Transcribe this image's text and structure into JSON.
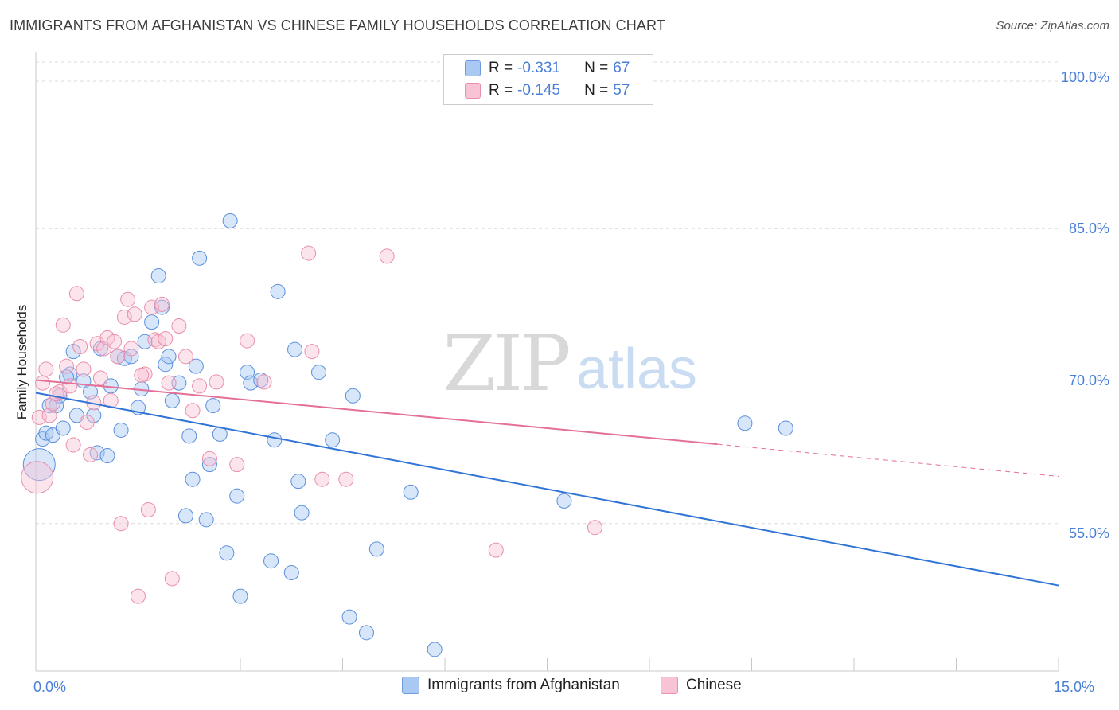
{
  "header": {
    "title": "IMMIGRANTS FROM AFGHANISTAN VS CHINESE FAMILY HOUSEHOLDS CORRELATION CHART",
    "source": "Source: ZipAtlas.com"
  },
  "watermark": {
    "zip": "ZIP",
    "atlas": "atlas"
  },
  "legend": {
    "rows": [
      {
        "r_label": "R =",
        "r_value": "-0.331",
        "n_label": "N =",
        "n_value": "67",
        "color": "#a9c8f2",
        "border": "#6d9be0"
      },
      {
        "r_label": "R =",
        "r_value": "-0.145",
        "n_label": "N =",
        "n_value": "57",
        "color": "#f8c3d4",
        "border": "#e88fab"
      }
    ]
  },
  "bottom_legend": {
    "items": [
      {
        "label": "Immigrants from Afghanistan",
        "color": "#a9c8f2",
        "border": "#6d9be0"
      },
      {
        "label": "Chinese",
        "color": "#f8c3d4",
        "border": "#e88fab"
      }
    ]
  },
  "chart_data": {
    "type": "scatter",
    "title": "IMMIGRANTS FROM AFGHANISTAN VS CHINESE FAMILY HOUSEHOLDS CORRELATION CHART",
    "xlabel": "",
    "ylabel": "Family Households",
    "xlim": [
      0,
      15
    ],
    "ylim": [
      40,
      103
    ],
    "x_tick_labels": [
      "0.0%",
      "15.0%"
    ],
    "y_tick_labels": [
      "100.0%",
      "85.0%",
      "70.0%",
      "55.0%"
    ],
    "y_tick_values": [
      100,
      85,
      70,
      55
    ],
    "grid": true,
    "legend_position": "top-center",
    "colors": {
      "blue": "#4a8ee0",
      "blue_fill": "#a9c8f2",
      "blue_line": "#2f74d6",
      "pink": "#e88fab",
      "pink_fill": "#f8c3d4",
      "pink_line": "#e56f97"
    },
    "series": [
      {
        "name": "Immigrants from Afghanistan",
        "color": "#a9c8f2",
        "points": [
          [
            0.05,
            61.0
          ],
          [
            0.1,
            63.6
          ],
          [
            0.15,
            64.2
          ],
          [
            0.2,
            67.0
          ],
          [
            0.25,
            64.0
          ],
          [
            0.3,
            67.0
          ],
          [
            0.35,
            68.0
          ],
          [
            0.4,
            64.7
          ],
          [
            0.5,
            70.2
          ],
          [
            0.55,
            72.5
          ],
          [
            0.6,
            66.0
          ],
          [
            0.7,
            69.5
          ],
          [
            0.8,
            68.4
          ],
          [
            0.85,
            66.0
          ],
          [
            0.9,
            62.2
          ],
          [
            0.95,
            72.8
          ],
          [
            1.05,
            61.9
          ],
          [
            1.1,
            69.0
          ],
          [
            1.2,
            72.0
          ],
          [
            1.25,
            64.5
          ],
          [
            1.3,
            71.8
          ],
          [
            1.4,
            72.0
          ],
          [
            1.5,
            66.8
          ],
          [
            1.55,
            68.7
          ],
          [
            1.6,
            73.5
          ],
          [
            1.7,
            75.5
          ],
          [
            1.8,
            80.2
          ],
          [
            1.85,
            77.0
          ],
          [
            1.9,
            71.2
          ],
          [
            1.95,
            72.0
          ],
          [
            2.0,
            67.5
          ],
          [
            2.1,
            69.3
          ],
          [
            2.2,
            55.8
          ],
          [
            2.25,
            63.9
          ],
          [
            2.3,
            59.5
          ],
          [
            2.35,
            71.0
          ],
          [
            2.4,
            82.0
          ],
          [
            2.5,
            55.4
          ],
          [
            2.55,
            61.0
          ],
          [
            2.6,
            67.0
          ],
          [
            2.7,
            64.1
          ],
          [
            2.8,
            52.0
          ],
          [
            2.85,
            85.8
          ],
          [
            2.95,
            57.8
          ],
          [
            3.0,
            47.6
          ],
          [
            3.1,
            70.4
          ],
          [
            3.15,
            69.3
          ],
          [
            3.3,
            69.6
          ],
          [
            3.45,
            51.2
          ],
          [
            3.5,
            63.5
          ],
          [
            3.55,
            78.6
          ],
          [
            3.75,
            50.0
          ],
          [
            3.8,
            72.7
          ],
          [
            3.85,
            59.3
          ],
          [
            3.9,
            56.1
          ],
          [
            4.15,
            70.4
          ],
          [
            4.35,
            63.5
          ],
          [
            4.6,
            45.5
          ],
          [
            4.65,
            68.0
          ],
          [
            4.85,
            43.9
          ],
          [
            5.0,
            52.4
          ],
          [
            5.5,
            58.2
          ],
          [
            5.85,
            42.2
          ],
          [
            7.75,
            57.3
          ],
          [
            10.4,
            65.2
          ],
          [
            11.0,
            64.7
          ],
          [
            0.45,
            69.9
          ]
        ]
      },
      {
        "name": "Chinese",
        "color": "#f8c3d4",
        "points": [
          [
            0.02,
            59.7
          ],
          [
            0.05,
            65.8
          ],
          [
            0.1,
            69.3
          ],
          [
            0.15,
            70.7
          ],
          [
            0.2,
            66.0
          ],
          [
            0.25,
            67.2
          ],
          [
            0.3,
            68.2
          ],
          [
            0.35,
            68.4
          ],
          [
            0.4,
            75.2
          ],
          [
            0.45,
            71.0
          ],
          [
            0.5,
            69.0
          ],
          [
            0.55,
            63.0
          ],
          [
            0.6,
            78.4
          ],
          [
            0.65,
            73.0
          ],
          [
            0.7,
            70.7
          ],
          [
            0.75,
            65.3
          ],
          [
            0.8,
            62.0
          ],
          [
            0.85,
            67.3
          ],
          [
            0.9,
            73.3
          ],
          [
            1.0,
            72.8
          ],
          [
            1.05,
            73.9
          ],
          [
            1.1,
            67.5
          ],
          [
            1.15,
            73.5
          ],
          [
            1.2,
            72.0
          ],
          [
            1.25,
            55.0
          ],
          [
            1.3,
            76.0
          ],
          [
            1.35,
            77.8
          ],
          [
            1.4,
            72.8
          ],
          [
            1.45,
            76.3
          ],
          [
            1.5,
            47.6
          ],
          [
            1.6,
            70.2
          ],
          [
            1.65,
            56.4
          ],
          [
            1.7,
            77.0
          ],
          [
            1.75,
            73.7
          ],
          [
            1.8,
            73.5
          ],
          [
            1.85,
            77.3
          ],
          [
            1.9,
            73.8
          ],
          [
            1.95,
            69.3
          ],
          [
            2.0,
            49.4
          ],
          [
            2.1,
            75.1
          ],
          [
            2.2,
            72.0
          ],
          [
            2.3,
            66.5
          ],
          [
            2.4,
            69.0
          ],
          [
            2.55,
            61.6
          ],
          [
            2.65,
            69.4
          ],
          [
            2.95,
            61.0
          ],
          [
            3.1,
            73.6
          ],
          [
            3.35,
            69.4
          ],
          [
            4.0,
            82.5
          ],
          [
            4.05,
            72.5
          ],
          [
            4.2,
            59.5
          ],
          [
            4.55,
            59.5
          ],
          [
            5.15,
            82.2
          ],
          [
            6.75,
            52.3
          ],
          [
            8.2,
            54.6
          ],
          [
            0.95,
            69.8
          ],
          [
            1.55,
            70.1
          ]
        ]
      }
    ],
    "trend_lines": [
      {
        "series": "Immigrants from Afghanistan",
        "x0": 0.0,
        "y0": 68.3,
        "x1": 15.0,
        "y1": 48.7,
        "dashed_from": null
      },
      {
        "series": "Chinese",
        "x0": 0.0,
        "y0": 69.6,
        "x1": 15.0,
        "y1": 59.8,
        "dashed_from": 10.0
      }
    ]
  }
}
